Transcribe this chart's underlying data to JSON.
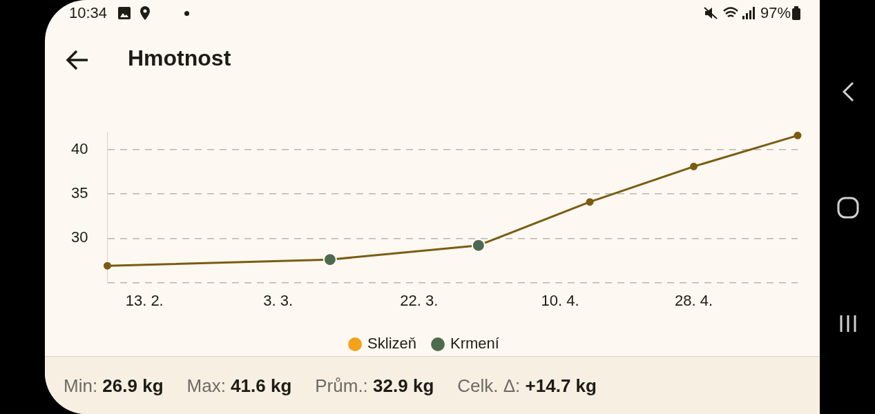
{
  "chart_data": {
    "type": "line",
    "title": "Hmotnost",
    "x": [
      "--02-08",
      "--03-10",
      "--03-30",
      "--04-14",
      "--04-28",
      "--05-12"
    ],
    "xlim": [
      "--02-08",
      "--05-12"
    ],
    "xticks": [
      {
        "value": "--02-13",
        "label": "13. 2."
      },
      {
        "value": "--03-03",
        "label": "3. 3."
      },
      {
        "value": "--03-22",
        "label": "22. 3."
      },
      {
        "value": "--04-10",
        "label": "10. 4."
      },
      {
        "value": "--04-28",
        "label": "28. 4."
      }
    ],
    "ylim": [
      25,
      42
    ],
    "yticks": [
      {
        "value": 25,
        "label": null
      },
      30,
      35,
      40
    ],
    "grid": "y",
    "marker": "circle",
    "legend": "bottom",
    "series": [
      {
        "color": "#7a5c10",
        "values": [
          26.9,
          27.6,
          29.2,
          34.1,
          38.1,
          41.6
        ]
      },
      {
        "type": "scatter",
        "name": "Sklizeň",
        "color": "#f2a31b",
        "values": [
          null,
          null,
          null,
          null,
          null,
          null
        ]
      },
      {
        "type": "scatter",
        "name": "Krmení",
        "color": "#4e6b4f",
        "x": [
          "--03-10",
          "--03-30"
        ],
        "values": [
          27.6,
          29.2
        ]
      }
    ],
    "annotations": [
      "10:34",
      "97%",
      "Min: 26.9 kg",
      "Max: 41.6 kg",
      "Prům.: 32.9 kg",
      "Celk. Δ: +14.7 kg"
    ]
  }
}
